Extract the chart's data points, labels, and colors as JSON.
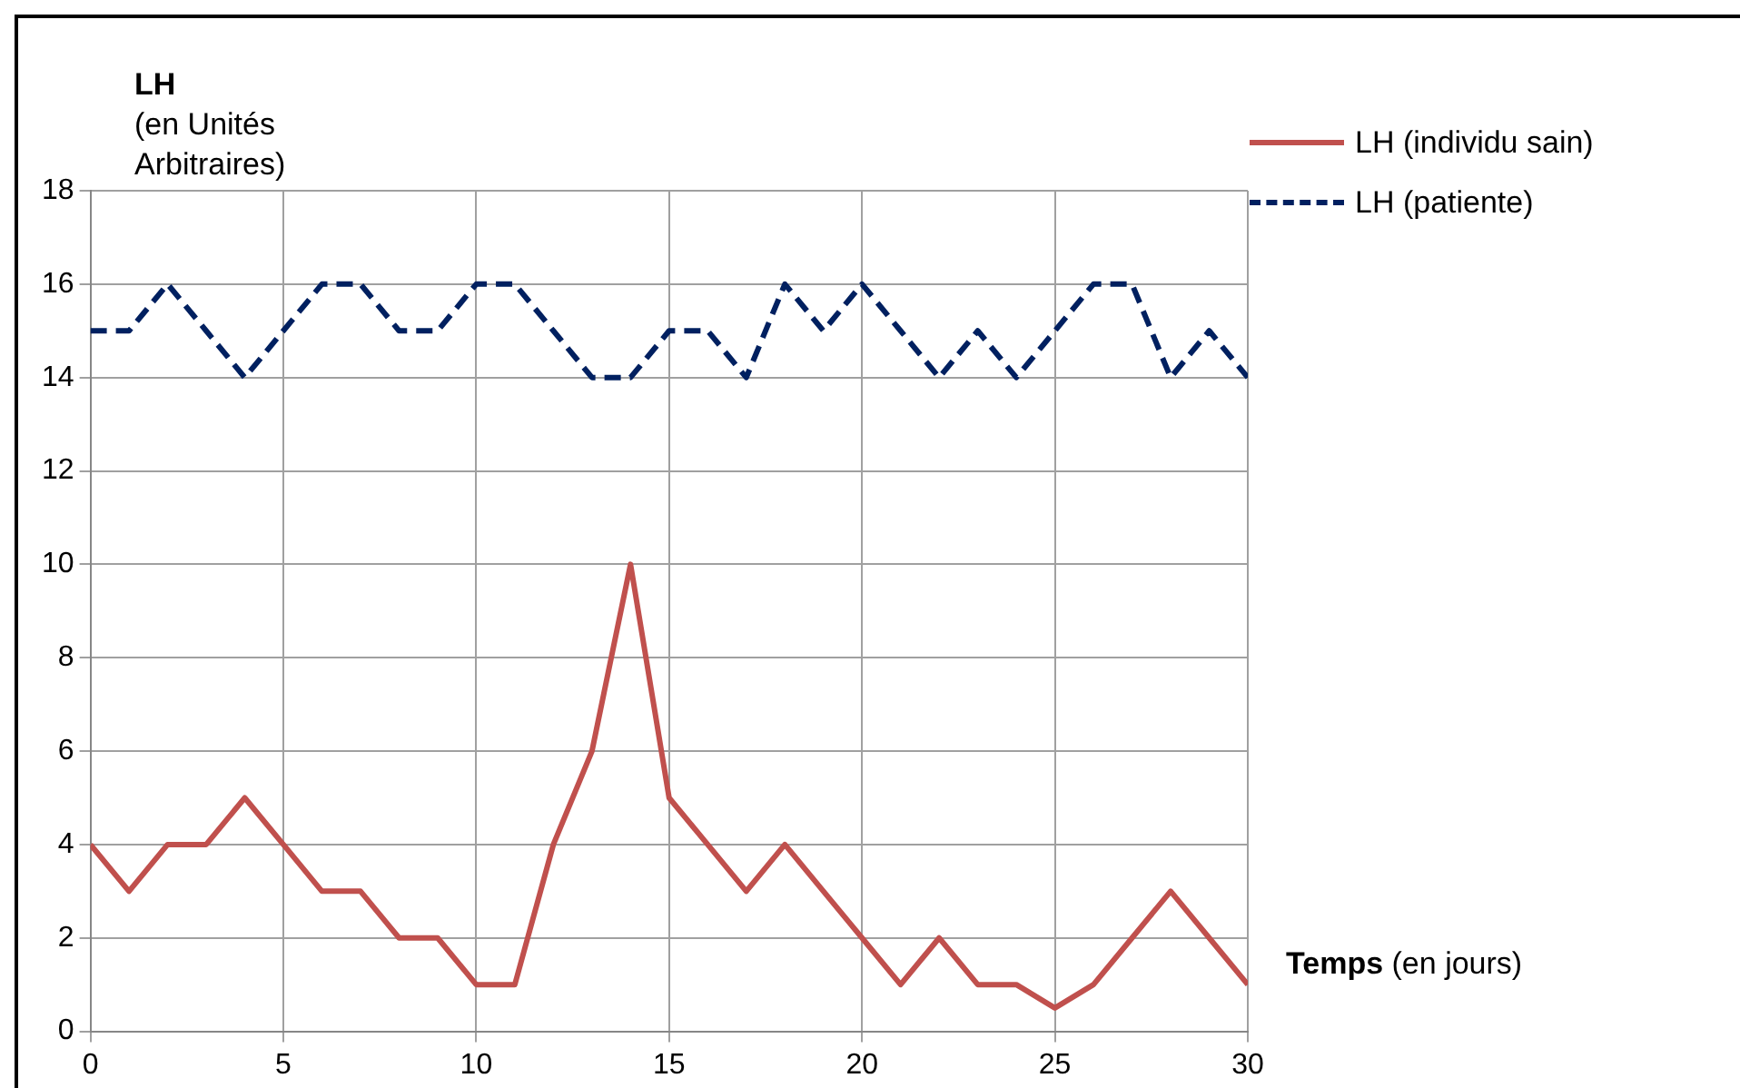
{
  "chart_data": {
    "type": "line",
    "xlabel": "Temps (en jours)",
    "ylabel": "LH (en Unités Arbitraires)",
    "x": [
      0,
      1,
      2,
      3,
      4,
      5,
      6,
      7,
      8,
      9,
      10,
      11,
      12,
      13,
      14,
      15,
      16,
      17,
      18,
      19,
      20,
      21,
      22,
      23,
      24,
      25,
      26,
      27,
      28,
      29,
      30
    ],
    "series": [
      {
        "name": "LH (individu sain)",
        "color": "#c0504d",
        "line_style": "solid",
        "values": [
          4,
          3,
          4,
          4,
          5,
          4,
          3,
          3,
          2,
          2,
          1,
          1,
          4,
          6,
          10,
          5,
          4,
          3,
          4,
          3,
          2,
          1,
          2,
          1,
          1,
          0.5,
          1,
          2,
          3,
          2,
          1
        ]
      },
      {
        "name": "LH (patiente)",
        "color": "#002060",
        "line_style": "dashed",
        "values": [
          15,
          15,
          16,
          15,
          14,
          15,
          16,
          16,
          15,
          15,
          16,
          16,
          15,
          14,
          14,
          15,
          15,
          14,
          16,
          15,
          16,
          15,
          14,
          15,
          14,
          15,
          16,
          16,
          14,
          15,
          14
        ]
      }
    ],
    "xlim": [
      0,
      30
    ],
    "xticks": [
      0,
      5,
      10,
      15,
      20,
      25,
      30
    ],
    "ylim": [
      0,
      18
    ],
    "yticks": [
      0,
      2,
      4,
      6,
      8,
      10,
      12,
      14,
      16,
      18
    ],
    "grid": true,
    "legend": "top right",
    "marker": "none"
  }
}
